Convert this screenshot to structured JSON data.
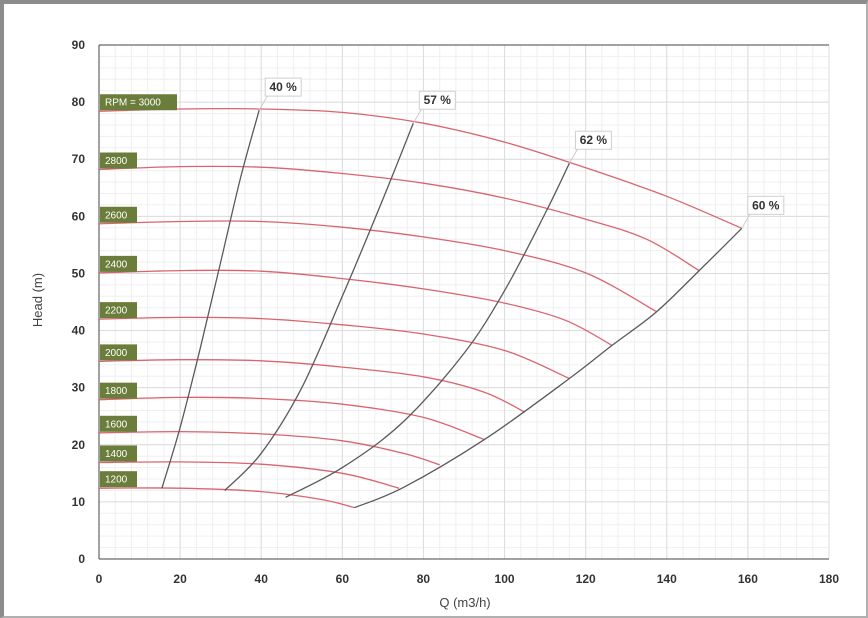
{
  "chart_data": {
    "type": "line",
    "xlabel": "Q (m3/h)",
    "ylabel": "Head (m)",
    "xlim": [
      0,
      180
    ],
    "ylim": [
      0,
      90
    ],
    "x_ticks": [
      "0",
      "20",
      "40",
      "60",
      "80",
      "100",
      "120",
      "140",
      "160",
      "180"
    ],
    "y_ticks": [
      "0",
      "10",
      "20",
      "30",
      "40",
      "50",
      "60",
      "70",
      "80",
      "90"
    ],
    "grid": true,
    "colors": {
      "speed_curve": "#d9646e",
      "efficiency_curve": "#5a5a5a",
      "label_bg": "#6b7d3a"
    },
    "speed_curves": [
      {
        "label": "RPM = 3000",
        "points": [
          [
            0,
            78.4
          ],
          [
            20,
            78.8
          ],
          [
            40,
            78.8
          ],
          [
            60,
            78.2
          ],
          [
            80,
            76.3
          ],
          [
            100,
            73
          ],
          [
            120,
            68.5
          ],
          [
            140,
            63.5
          ],
          [
            158.5,
            57.9
          ]
        ]
      },
      {
        "label": "2800",
        "points": [
          [
            0,
            68.2
          ],
          [
            20,
            68.7
          ],
          [
            40,
            68.6
          ],
          [
            60,
            67.5
          ],
          [
            80,
            65.8
          ],
          [
            100,
            63.2
          ],
          [
            120,
            59.5
          ],
          [
            135,
            56
          ],
          [
            148,
            50.5
          ]
        ]
      },
      {
        "label": "2600",
        "points": [
          [
            0,
            58.7
          ],
          [
            20,
            59.1
          ],
          [
            40,
            59.1
          ],
          [
            60,
            58.1
          ],
          [
            80,
            56.4
          ],
          [
            100,
            54
          ],
          [
            120,
            50.1
          ],
          [
            137.5,
            43.3
          ]
        ]
      },
      {
        "label": "2400",
        "points": [
          [
            0,
            50.1
          ],
          [
            20,
            50.5
          ],
          [
            40,
            50.4
          ],
          [
            60,
            49.1
          ],
          [
            80,
            47.3
          ],
          [
            100,
            44.8
          ],
          [
            115,
            41.8
          ],
          [
            126.5,
            37.4
          ]
        ]
      },
      {
        "label": "2200",
        "points": [
          [
            0,
            42
          ],
          [
            20,
            42.3
          ],
          [
            40,
            42.1
          ],
          [
            60,
            41
          ],
          [
            80,
            39.4
          ],
          [
            100,
            36.5
          ],
          [
            116,
            31.6
          ]
        ]
      },
      {
        "label": "2000",
        "points": [
          [
            0,
            34.6
          ],
          [
            20,
            34.9
          ],
          [
            40,
            34.7
          ],
          [
            60,
            33.6
          ],
          [
            80,
            31.9
          ],
          [
            95,
            29.2
          ],
          [
            105,
            25.7
          ]
        ]
      },
      {
        "label": "1800",
        "points": [
          [
            0,
            27.9
          ],
          [
            20,
            28.3
          ],
          [
            40,
            28.1
          ],
          [
            60,
            27.1
          ],
          [
            80,
            24.8
          ],
          [
            95,
            20.9
          ]
        ]
      },
      {
        "label": "1600",
        "points": [
          [
            0,
            22.1
          ],
          [
            20,
            22.3
          ],
          [
            40,
            21.9
          ],
          [
            60,
            20.7
          ],
          [
            75,
            18.5
          ],
          [
            84,
            16.5
          ]
        ]
      },
      {
        "label": "1400",
        "points": [
          [
            0,
            16.9
          ],
          [
            20,
            17
          ],
          [
            40,
            16.6
          ],
          [
            60,
            15
          ],
          [
            74,
            12.4
          ]
        ]
      },
      {
        "label": "1200",
        "points": [
          [
            0,
            12.4
          ],
          [
            20,
            12.4
          ],
          [
            40,
            11.8
          ],
          [
            55,
            10.4
          ],
          [
            63,
            9
          ]
        ]
      }
    ],
    "efficiency_curves": [
      {
        "label": "40 %",
        "points": [
          [
            15.5,
            12.4
          ],
          [
            20,
            23
          ],
          [
            25,
            37
          ],
          [
            30,
            52
          ],
          [
            35,
            67
          ],
          [
            39.5,
            78.6
          ]
        ]
      },
      {
        "label": "57 %",
        "points": [
          [
            31,
            12
          ],
          [
            40,
            18.5
          ],
          [
            50,
            30
          ],
          [
            60,
            46
          ],
          [
            70,
            63
          ],
          [
            77.5,
            76.3
          ]
        ]
      },
      {
        "label": "62 %",
        "points": [
          [
            46,
            10.8
          ],
          [
            60,
            16
          ],
          [
            75,
            24
          ],
          [
            90,
            36
          ],
          [
            100,
            47
          ],
          [
            110,
            60.5
          ],
          [
            116,
            69.3
          ]
        ]
      },
      {
        "label": "60 %",
        "points": [
          [
            63,
            9
          ],
          [
            75,
            12.5
          ],
          [
            95,
            20.9
          ],
          [
            116,
            31.6
          ],
          [
            126.5,
            37.4
          ],
          [
            137.5,
            43.3
          ],
          [
            148,
            50.5
          ],
          [
            158.5,
            57.9
          ]
        ]
      }
    ]
  }
}
